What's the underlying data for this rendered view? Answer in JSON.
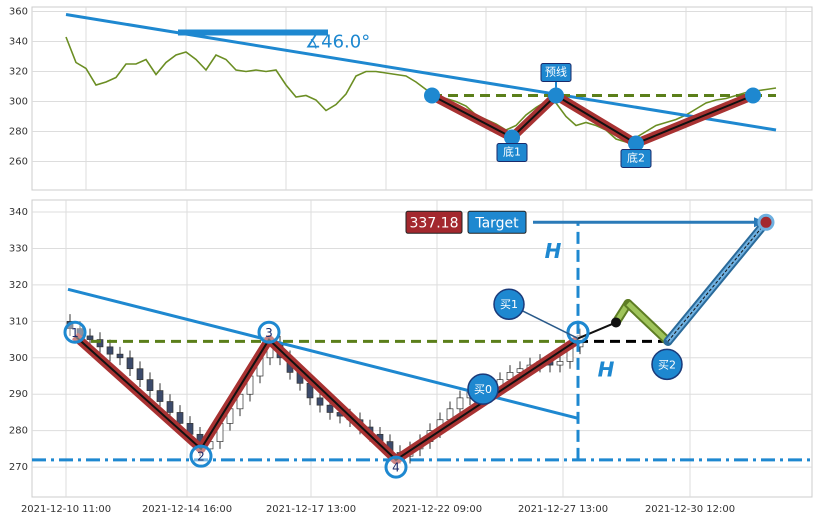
{
  "chart_data": [
    {
      "type": "line",
      "x": [
        0,
        1,
        2,
        3,
        4,
        5,
        6,
        7,
        8,
        9,
        10,
        11,
        12,
        13,
        14,
        15,
        16,
        17,
        18,
        19,
        20,
        21,
        22,
        23,
        24,
        25,
        26,
        27,
        28,
        29,
        30,
        31,
        32,
        33,
        34,
        35,
        36,
        37,
        38,
        39,
        40,
        41,
        42,
        43,
        44,
        45,
        46,
        47,
        48,
        49,
        50,
        51,
        52,
        53,
        54,
        55,
        56,
        57,
        58,
        59,
        60,
        61,
        62,
        63,
        64,
        65,
        66,
        67,
        68,
        69,
        70,
        71
      ],
      "series": [
        {
          "color": "#6b8e23",
          "values": [
            343,
            326,
            322,
            311,
            313,
            316,
            325,
            325,
            328,
            318,
            326,
            331,
            333,
            328,
            321,
            331,
            328,
            321,
            320,
            321,
            320,
            321,
            311,
            303,
            304,
            301,
            294,
            298,
            305,
            317,
            320,
            320,
            319,
            318,
            317,
            313,
            308,
            302,
            302,
            300,
            297,
            291,
            288,
            285,
            281,
            284,
            291,
            296,
            300,
            299,
            290,
            284,
            286,
            284,
            281,
            275,
            273,
            276,
            280,
            284,
            286,
            288,
            291,
            295,
            299,
            301,
            302,
            304,
            306,
            307,
            308,
            309
          ]
        }
      ],
      "xlim": [
        -3.4,
        74.6
      ],
      "ylim": [
        241,
        363
      ],
      "xticks": [
        2,
        12,
        22,
        32,
        42,
        52,
        62,
        72
      ],
      "yticks": [
        260,
        280,
        300,
        320,
        340,
        360
      ],
      "grid": true,
      "trend_line": {
        "x": [
          0,
          71
        ],
        "values": [
          358,
          281
        ],
        "color": "#1e88d0"
      },
      "pattern": {
        "x": [
          36.6,
          44.6,
          49,
          57,
          68.7
        ],
        "values": [
          304,
          276,
          304,
          272,
          304
        ],
        "labels": [
          null,
          "底1",
          "预线",
          "底2",
          null
        ]
      },
      "neckline": {
        "x": [
          36.6,
          71
        ],
        "values": [
          304,
          304
        ]
      },
      "angle": {
        "label": "∡46.0°",
        "x": [
          11.2,
          26.2
        ],
        "values": [
          346,
          346
        ]
      }
    },
    {
      "type": "candlestick",
      "x": [
        0,
        1,
        2,
        3,
        4,
        5,
        6,
        7,
        8,
        9,
        10,
        11,
        12,
        13,
        14,
        15,
        16,
        17,
        18,
        19,
        20,
        21,
        22,
        23,
        24,
        25,
        26,
        27,
        28,
        29,
        30,
        31,
        32,
        33,
        34,
        35,
        36,
        37,
        38,
        39,
        40,
        41,
        42,
        43,
        44,
        45,
        46,
        47,
        48,
        49,
        50,
        51
      ],
      "open": [
        310,
        308,
        306,
        305,
        303,
        301,
        300,
        297,
        294,
        291,
        288,
        285,
        282,
        279,
        275,
        277,
        282,
        286,
        290,
        295,
        300,
        304,
        300,
        296,
        293,
        289,
        287,
        285,
        284,
        283,
        281,
        279,
        277,
        274,
        273,
        275,
        277,
        280,
        283,
        286,
        289,
        291,
        290,
        292,
        294,
        296,
        297,
        298,
        299,
        298,
        299,
        303
      ],
      "high": [
        312,
        310,
        308,
        307,
        305,
        303,
        302,
        299,
        296,
        293,
        290,
        287,
        284,
        281,
        279,
        284,
        288,
        292,
        297,
        302,
        306,
        306,
        302,
        298,
        295,
        291,
        289,
        287,
        286,
        285,
        283,
        281,
        279,
        276,
        277,
        279,
        282,
        285,
        288,
        291,
        293,
        293,
        294,
        296,
        298,
        299,
        300,
        301,
        301,
        301,
        305,
        308
      ],
      "low": [
        306,
        304,
        303,
        301,
        299,
        298,
        295,
        292,
        289,
        286,
        283,
        280,
        277,
        273,
        273,
        275,
        280,
        284,
        288,
        293,
        298,
        298,
        294,
        291,
        287,
        285,
        283,
        282,
        281,
        279,
        277,
        275,
        272,
        271,
        271,
        273,
        275,
        278,
        281,
        284,
        287,
        288,
        288,
        290,
        292,
        294,
        295,
        296,
        296,
        296,
        297,
        301
      ],
      "close": [
        308,
        306,
        305,
        303,
        301,
        300,
        297,
        294,
        291,
        288,
        285,
        282,
        279,
        275,
        277,
        282,
        286,
        290,
        295,
        300,
        304,
        300,
        296,
        293,
        289,
        287,
        285,
        284,
        283,
        281,
        279,
        277,
        274,
        273,
        275,
        277,
        280,
        283,
        286,
        289,
        291,
        290,
        292,
        294,
        296,
        297,
        298,
        299,
        298,
        299,
        303,
        306
      ],
      "up_color": "#ffffff",
      "down_color": "#3b4a6b",
      "xlim": [
        -3.8,
        74.2
      ],
      "ylim": [
        261.8,
        343.3
      ],
      "xticks": [
        {
          "value": -0.4,
          "label": "2021-12-10 11:00"
        },
        {
          "value": 11.7,
          "label": "2021-12-14 16:00"
        },
        {
          "value": 24.1,
          "label": "2021-12-17 13:00"
        },
        {
          "value": 36.7,
          "label": "2021-12-22 09:00"
        },
        {
          "value": 49.3,
          "label": "2021-12-27 13:00"
        },
        {
          "value": 62,
          "label": "2021-12-30 12:00"
        }
      ],
      "yticks": [
        270,
        280,
        290,
        300,
        310,
        320,
        330,
        340
      ],
      "grid": true,
      "trend_line": {
        "x": [
          -0.2,
          50.8
        ],
        "values": [
          318.8,
          283.4
        ]
      },
      "pattern": {
        "x": [
          0.5,
          13.1,
          19.9,
          32.6,
          50.8
        ],
        "values": [
          306,
          275,
          305,
          272,
          305
        ]
      },
      "pivots": {
        "x": [
          0.5,
          13.1,
          19.9,
          32.6,
          50.8
        ],
        "values": [
          307,
          273,
          307,
          270,
          307
        ],
        "labels": [
          "1",
          "2",
          "3",
          "4",
          null
        ]
      },
      "neckline": {
        "x": [
          0.5,
          50.8
        ],
        "values": [
          304.5,
          304.5
        ]
      },
      "neckline_extension": {
        "x": [
          50.8,
          59.8
        ],
        "values": [
          304.5,
          304.5
        ]
      },
      "support": {
        "value": 272
      },
      "height": {
        "x": 50.8,
        "values": [
          272,
          337.4
        ],
        "labels": [
          "H",
          "H"
        ]
      },
      "projection": {
        "x": [
          50.8,
          54.6,
          55.8,
          59.8,
          69.6
        ],
        "values": [
          305.3,
          309.7,
          314.9,
          304.5,
          337.18
        ]
      },
      "target": {
        "x": [
          46.3,
          69.6
        ],
        "value": 337.18,
        "label": "Target"
      },
      "signals": [
        {
          "label": "买0",
          "x": 41.3,
          "value": 291.4
        },
        {
          "label": "买1",
          "x": 43.9,
          "value": 314.7
        },
        {
          "label": "买2",
          "x": 59.7,
          "value": 298.2
        }
      ]
    }
  ]
}
